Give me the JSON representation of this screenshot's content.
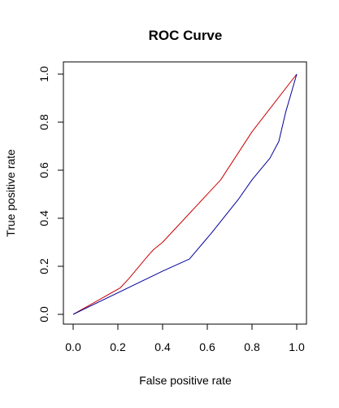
{
  "chart_data": {
    "type": "line",
    "title": "ROC Curve",
    "xlabel": "False positive rate",
    "ylabel": "True positive rate",
    "xlim": [
      0,
      1
    ],
    "ylim": [
      0,
      1
    ],
    "x_ticks": [
      "0.0",
      "0.2",
      "0.4",
      "0.6",
      "0.8",
      "1.0"
    ],
    "y_ticks": [
      "0.0",
      "0.2",
      "0.4",
      "0.6",
      "0.8",
      "1.0"
    ],
    "grid": false,
    "legend": "none",
    "series": [
      {
        "color": "#cc0000",
        "points": [
          [
            0.0,
            0.0
          ],
          [
            0.21,
            0.11
          ],
          [
            0.25,
            0.15
          ],
          [
            0.34,
            0.25
          ],
          [
            0.36,
            0.27
          ],
          [
            0.4,
            0.3
          ],
          [
            0.52,
            0.42
          ],
          [
            0.66,
            0.56
          ],
          [
            0.8,
            0.76
          ],
          [
            1.0,
            1.0
          ]
        ]
      },
      {
        "color": "#000099",
        "points": [
          [
            0.0,
            0.0
          ],
          [
            0.4,
            0.18
          ],
          [
            0.52,
            0.23
          ],
          [
            0.62,
            0.34
          ],
          [
            0.74,
            0.48
          ],
          [
            0.8,
            0.56
          ],
          [
            0.88,
            0.65
          ],
          [
            0.92,
            0.72
          ],
          [
            0.95,
            0.84
          ],
          [
            1.0,
            1.0
          ]
        ]
      }
    ]
  }
}
